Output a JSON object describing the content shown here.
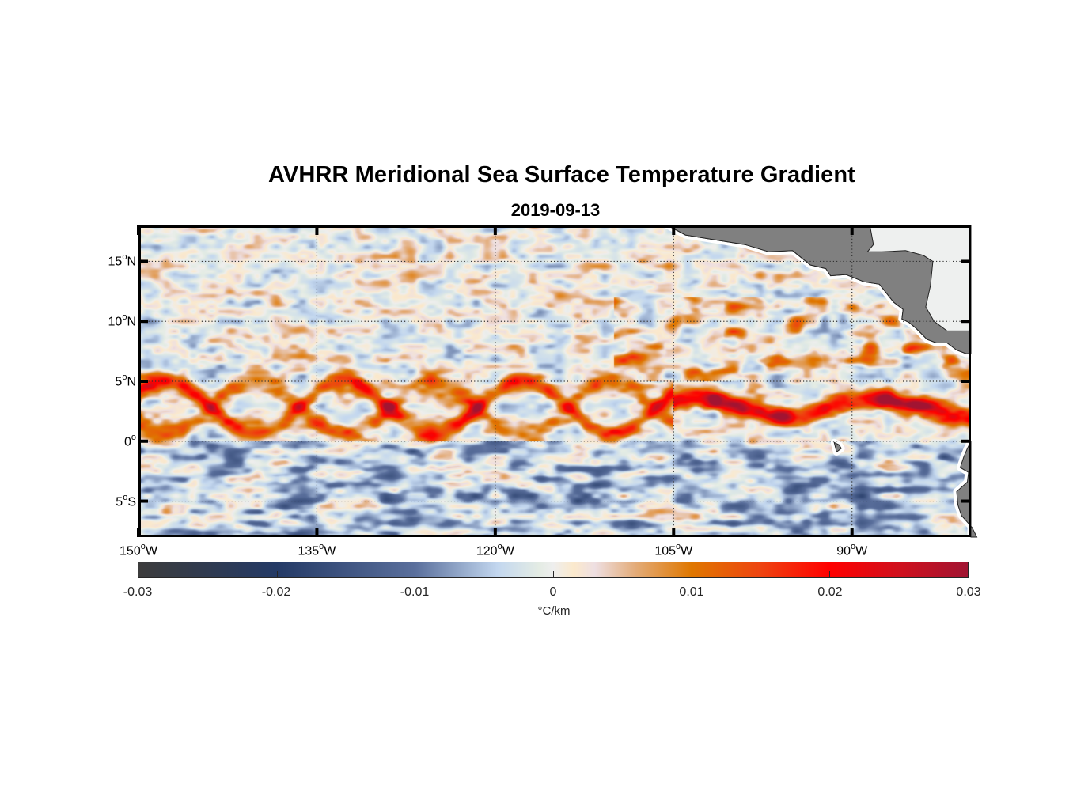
{
  "title": "AVHRR Meridional Sea Surface Temperature Gradient",
  "subtitle": "2019-09-13",
  "chart_data": {
    "type": "heatmap",
    "title": "AVHRR Meridional Sea Surface Temperature Gradient",
    "subtitle": "2019-09-13",
    "xlabel": "",
    "ylabel": "",
    "xlim": [
      -150,
      -80
    ],
    "ylim": [
      -8,
      18
    ],
    "grid": true,
    "x_ticks": [
      {
        "value": -150,
        "label": "150",
        "hemi": "W"
      },
      {
        "value": -135,
        "label": "135",
        "hemi": "W"
      },
      {
        "value": -120,
        "label": "120",
        "hemi": "W"
      },
      {
        "value": -105,
        "label": "105",
        "hemi": "W"
      },
      {
        "value": -90,
        "label": "90",
        "hemi": "W"
      }
    ],
    "y_ticks": [
      {
        "value": 15,
        "label": "15",
        "hemi": "N"
      },
      {
        "value": 10,
        "label": "10",
        "hemi": "N"
      },
      {
        "value": 5,
        "label": "5",
        "hemi": "N"
      },
      {
        "value": 0,
        "label": "0",
        "hemi": ""
      },
      {
        "value": -5,
        "label": "5",
        "hemi": "S"
      }
    ],
    "degree_symbol": "o",
    "colorbar": {
      "range": [
        -0.03,
        0.03
      ],
      "ticks": [
        {
          "value": -0.03,
          "label": "-0.03"
        },
        {
          "value": -0.02,
          "label": "-0.02"
        },
        {
          "value": -0.01,
          "label": "-0.01"
        },
        {
          "value": 0,
          "label": "0"
        },
        {
          "value": 0.01,
          "label": "0.01"
        },
        {
          "value": 0.02,
          "label": "0.02"
        },
        {
          "value": 0.03,
          "label": "0.03"
        }
      ],
      "units": "°C/km",
      "location": "bottom",
      "colormap": [
        {
          "value": -0.03,
          "color": "#3c3c3c"
        },
        {
          "value": -0.02,
          "color": "#243a66"
        },
        {
          "value": -0.01,
          "color": "#5a6f9c"
        },
        {
          "value": -0.004,
          "color": "#c3d7ef"
        },
        {
          "value": -0.001,
          "color": "#e4ece4"
        },
        {
          "value": 0,
          "color": "#eeeeee"
        },
        {
          "value": 0.0015,
          "color": "#fbe9cc"
        },
        {
          "value": 0.003,
          "color": "#eedfe2"
        },
        {
          "value": 0.006,
          "color": "#e3ab77"
        },
        {
          "value": 0.01,
          "color": "#df7700"
        },
        {
          "value": 0.015,
          "color": "#ee4410"
        },
        {
          "value": 0.02,
          "color": "#ff0000"
        },
        {
          "value": 0.025,
          "color": "#d0101d"
        },
        {
          "value": 0.03,
          "color": "#a11432"
        }
      ]
    },
    "land_color": "#808080",
    "regions_with_land": [
      "Central America",
      "South America (Ecuador coast)",
      "Galápagos Islands"
    ]
  }
}
